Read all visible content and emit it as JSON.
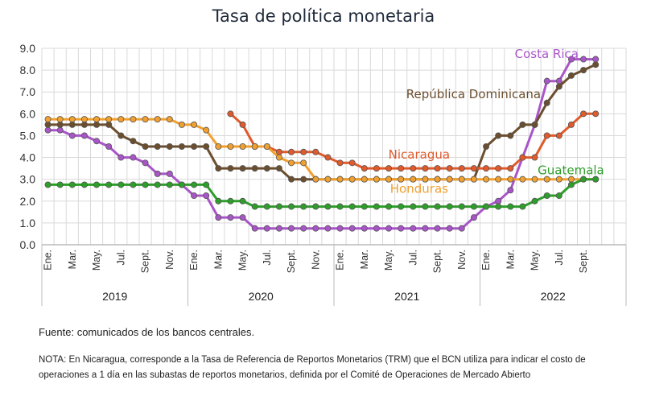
{
  "title": "Tasa de política monetaria",
  "source": "Fuente: comunicados de los bancos centrales.",
  "note": "NOTA: En Nicaragua, corresponde a la Tasa de Referencia de Reportos Monetarios (TRM) que el BCN utiliza para indicar el costo de operaciones a 1 día en las subastas de reportos monetarios, definida por el Comité de Operaciones de Mercado Abierto",
  "chart_data": {
    "type": "line",
    "title": "Tasa de política monetaria",
    "xlabel": "",
    "ylabel": "",
    "ylim": [
      0,
      9
    ],
    "yticks": [
      "0.0",
      "1.0",
      "2.0",
      "3.0",
      "4.0",
      "5.0",
      "6.0",
      "7.0",
      "8.0",
      "9.0"
    ],
    "grid": true,
    "x_tick_labels": [
      "Ene.",
      "Mar.",
      "May.",
      "Jul.",
      "Sept.",
      "Nov.",
      "Ene.",
      "Mar.",
      "May.",
      "Jul.",
      "Sept.",
      "Nov.",
      "Ene.",
      "Mar.",
      "May.",
      "Jul.",
      "Sept.",
      "Nov.",
      "Ene.",
      "Mar.",
      "May.",
      "Jul.",
      "Sept."
    ],
    "years": [
      "2019",
      "2020",
      "2021",
      "2022"
    ],
    "x": [
      "2019-01",
      "2019-02",
      "2019-03",
      "2019-04",
      "2019-05",
      "2019-06",
      "2019-07",
      "2019-08",
      "2019-09",
      "2019-10",
      "2019-11",
      "2019-12",
      "2020-01",
      "2020-02",
      "2020-03",
      "2020-04",
      "2020-05",
      "2020-06",
      "2020-07",
      "2020-08",
      "2020-09",
      "2020-10",
      "2020-11",
      "2020-12",
      "2021-01",
      "2021-02",
      "2021-03",
      "2021-04",
      "2021-05",
      "2021-06",
      "2021-07",
      "2021-08",
      "2021-09",
      "2021-10",
      "2021-11",
      "2021-12",
      "2022-01",
      "2022-02",
      "2022-03",
      "2022-04",
      "2022-05",
      "2022-06",
      "2022-07",
      "2022-08",
      "2022-09",
      "2022-10"
    ],
    "series": [
      {
        "name": "Costa Rica",
        "color": "#a855c8",
        "values": [
          5.25,
          5.25,
          5.0,
          5.0,
          4.75,
          4.5,
          4.0,
          4.0,
          3.75,
          3.25,
          3.25,
          2.75,
          2.25,
          2.25,
          1.25,
          1.25,
          1.25,
          0.75,
          0.75,
          0.75,
          0.75,
          0.75,
          0.75,
          0.75,
          0.75,
          0.75,
          0.75,
          0.75,
          0.75,
          0.75,
          0.75,
          0.75,
          0.75,
          0.75,
          0.75,
          1.25,
          1.75,
          2.0,
          2.5,
          4.0,
          5.5,
          7.5,
          7.5,
          8.5,
          8.5,
          8.5
        ]
      },
      {
        "name": "República Dominicana",
        "color": "#6b4e2e",
        "values": [
          5.5,
          5.5,
          5.5,
          5.5,
          5.5,
          5.5,
          5.0,
          4.75,
          4.5,
          4.5,
          4.5,
          4.5,
          4.5,
          4.5,
          3.5,
          3.5,
          3.5,
          3.5,
          3.5,
          3.5,
          3.0,
          3.0,
          3.0,
          3.0,
          3.0,
          3.0,
          3.0,
          3.0,
          3.0,
          3.0,
          3.0,
          3.0,
          3.0,
          3.0,
          3.0,
          3.0,
          4.5,
          5.0,
          5.0,
          5.5,
          5.5,
          6.5,
          7.25,
          7.75,
          8.0,
          8.25
        ]
      },
      {
        "name": "Nicaragua",
        "color": "#e05a2b",
        "values": [
          null,
          null,
          null,
          null,
          null,
          null,
          null,
          null,
          null,
          null,
          null,
          null,
          null,
          null,
          null,
          6.0,
          5.5,
          4.5,
          4.5,
          4.25,
          4.25,
          4.25,
          4.25,
          4.0,
          3.75,
          3.75,
          3.5,
          3.5,
          3.5,
          3.5,
          3.5,
          3.5,
          3.5,
          3.5,
          3.5,
          3.5,
          3.5,
          3.5,
          3.5,
          4.0,
          4.0,
          5.0,
          5.0,
          5.5,
          6.0,
          6.0
        ]
      },
      {
        "name": "Honduras",
        "color": "#f0a030",
        "values": [
          5.75,
          5.75,
          5.75,
          5.75,
          5.75,
          5.75,
          5.75,
          5.75,
          5.75,
          5.75,
          5.75,
          5.5,
          5.5,
          5.25,
          4.5,
          4.5,
          4.5,
          4.5,
          4.5,
          4.0,
          3.75,
          3.75,
          3.0,
          3.0,
          3.0,
          3.0,
          3.0,
          3.0,
          3.0,
          3.0,
          3.0,
          3.0,
          3.0,
          3.0,
          3.0,
          3.0,
          3.0,
          3.0,
          3.0,
          3.0,
          3.0,
          3.0,
          3.0,
          3.0,
          3.0,
          3.0
        ]
      },
      {
        "name": "Guatemala",
        "color": "#2e9e2a",
        "values": [
          2.75,
          2.75,
          2.75,
          2.75,
          2.75,
          2.75,
          2.75,
          2.75,
          2.75,
          2.75,
          2.75,
          2.75,
          2.75,
          2.75,
          2.0,
          2.0,
          2.0,
          1.75,
          1.75,
          1.75,
          1.75,
          1.75,
          1.75,
          1.75,
          1.75,
          1.75,
          1.75,
          1.75,
          1.75,
          1.75,
          1.75,
          1.75,
          1.75,
          1.75,
          1.75,
          1.75,
          1.75,
          1.75,
          1.75,
          1.75,
          2.0,
          2.25,
          2.25,
          2.75,
          3.0,
          3.0
        ]
      }
    ]
  }
}
